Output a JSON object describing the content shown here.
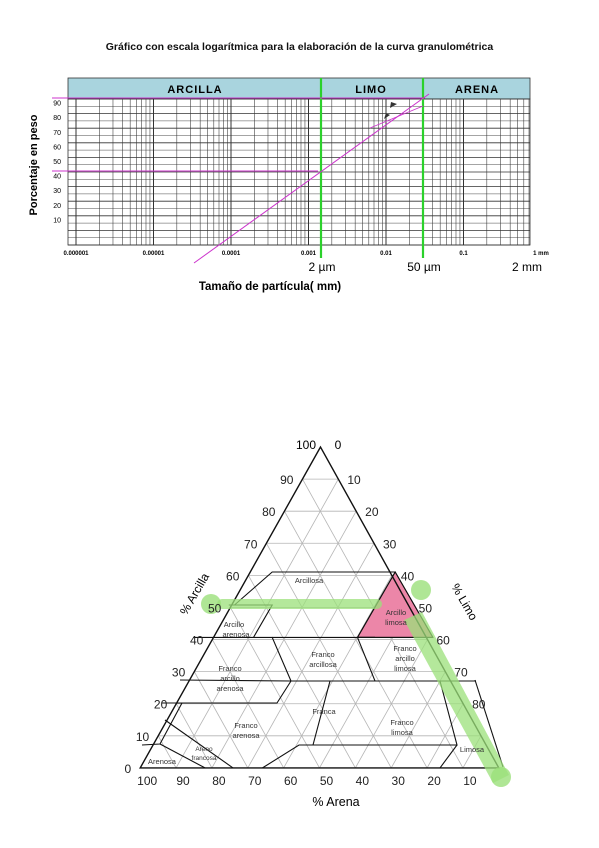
{
  "page_title": "Gráfico con escala logarítmica para la elaboración de la curva granulométrica",
  "granulometric": {
    "bands": [
      "ARCILLA",
      "LIMO",
      "ARENA"
    ],
    "y_axis_label": "Porcentaje en peso",
    "y_ticks": [
      "90",
      "80",
      "70",
      "60",
      "50",
      "40",
      "30",
      "20",
      "10"
    ],
    "x_ticks": [
      "0.000001",
      "0.00001",
      "0.0001",
      "0.001",
      "0.01",
      "0.1",
      "1 mm"
    ],
    "x_axis_label": "Tamaño de partícula( mm)",
    "boundary_labels": [
      "2 µm",
      "50 µm",
      "2 mm"
    ],
    "colors": {
      "band_fill": "#a9d4de",
      "boundary_line": "#2bd12b",
      "curve": "#cc33cc"
    }
  },
  "texture_triangle": {
    "left_axis_label": "% Arcilla",
    "right_axis_label": "% Limo",
    "bottom_axis_label": "% Arena",
    "top_labels": [
      "100",
      "0"
    ],
    "left_ticks": [
      "90",
      "80",
      "70",
      "60",
      "50",
      "40",
      "30",
      "20",
      "10",
      "0"
    ],
    "right_ticks": [
      "10",
      "20",
      "30",
      "40",
      "50",
      "60",
      "70",
      "80"
    ],
    "bottom_ticks": [
      "100",
      "90",
      "80",
      "70",
      "60",
      "50",
      "40",
      "30",
      "20",
      "10"
    ],
    "classes": {
      "arcillosa": "Arcillosa",
      "arcillo_arenosa": [
        "Arcillo",
        "arenosa"
      ],
      "arcillo_limosa": [
        "Arcillo",
        "limosa"
      ],
      "franco_arcillosa": [
        "Franco",
        "arcillosa"
      ],
      "franco_arcillo_limosa": [
        "Franco",
        "arcillo",
        "limosa"
      ],
      "franco_arcillo_arenosa": [
        "Franco",
        "arcillo",
        "arenosa"
      ],
      "franca": "Franca",
      "franco_arenosa": [
        "Franco",
        "arenosa"
      ],
      "franco_limosa": [
        "Franco",
        "limosa"
      ],
      "arenosa": "Arenosa",
      "areno_francosa": [
        "Areno",
        "francosa"
      ],
      "limosa": "Limosa"
    },
    "colors": {
      "highlight_fill": "#ec86a8",
      "marker": "#9be07a"
    }
  }
}
